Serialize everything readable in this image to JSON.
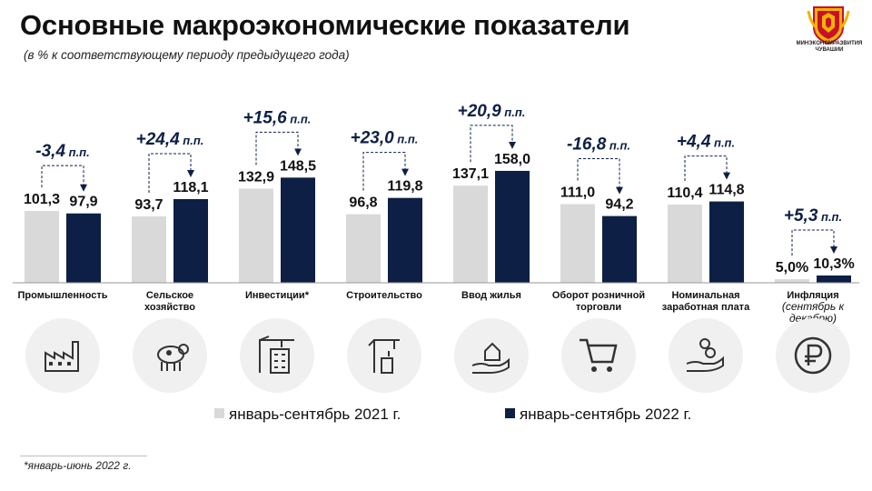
{
  "header": {
    "title": "Основные макроэкономические показатели",
    "subtitle": "(в % к соответствующему периоду предыдущего года)",
    "logo_text": "МИНЭКОНОМРАЗВИТИЯ ЧУВАШИИ"
  },
  "chart_data": {
    "type": "bar",
    "categories": [
      [
        "Промышленность"
      ],
      [
        "Сельское",
        "хозяйство"
      ],
      [
        "Инвестиции*"
      ],
      [
        "Строительство"
      ],
      [
        "Ввод жилья"
      ],
      [
        "Оборот  розничной",
        "торговли"
      ],
      [
        "Номинальная",
        "заработная плата"
      ],
      [
        "Инфляция",
        "(сентябрь к",
        "декабрю)"
      ]
    ],
    "series": [
      {
        "name": "январь-сентябрь 2021 г.",
        "color": "#d9d9d9",
        "values": [
          101.3,
          93.7,
          132.9,
          96.8,
          137.1,
          111.0,
          110.4,
          5.0
        ],
        "labels": [
          "101,3",
          "93,7",
          "132,9",
          "96,8",
          "137,1",
          "111,0",
          "110,4",
          "5,0%"
        ]
      },
      {
        "name": "январь-сентябрь 2022 г.",
        "color": "#0d1f45",
        "values": [
          97.9,
          118.1,
          148.5,
          119.8,
          158.0,
          94.2,
          114.8,
          10.3
        ],
        "labels": [
          "97,9",
          "118,1",
          "148,5",
          "119,8",
          "158,0",
          "94,2",
          "114,8",
          "10,3%"
        ]
      }
    ],
    "differences": [
      {
        "value": "-3,4",
        "unit": "п.п."
      },
      {
        "value": "+24,4",
        "unit": "п.п."
      },
      {
        "value": "+15,6",
        "unit": "п.п."
      },
      {
        "value": "+23,0",
        "unit": "п.п."
      },
      {
        "value": "+20,9",
        "unit": "п.п."
      },
      {
        "value": "-16,8",
        "unit": "п.п."
      },
      {
        "value": "+4,4",
        "unit": "п.п."
      },
      {
        "value": "+5,3",
        "unit": "п.п."
      }
    ],
    "icons": [
      "factory-icon",
      "cow-icon",
      "construction-icon",
      "crane-icon",
      "house-hand-icon",
      "shopping-cart-icon",
      "coins-hand-icon",
      "ruble-icon"
    ],
    "legend_position": "bottom",
    "grid": false
  },
  "footnote": "*январь-июнь  2022 г."
}
